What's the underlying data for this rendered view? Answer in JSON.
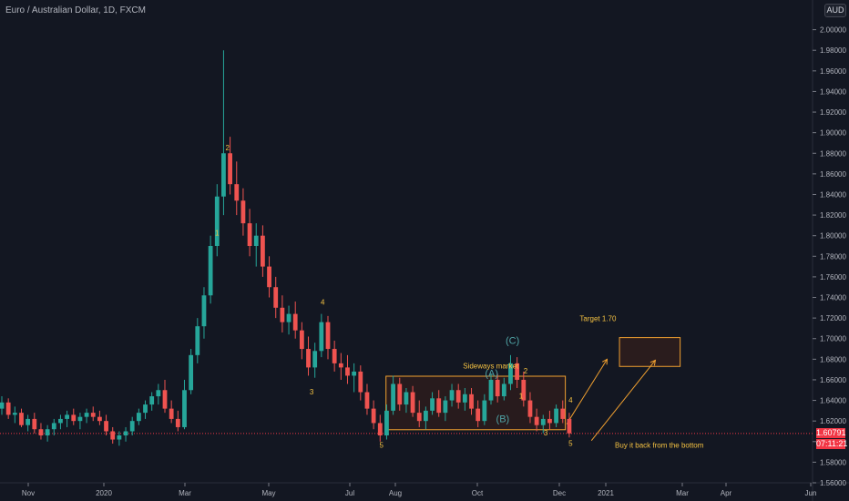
{
  "header": {
    "title": "Euro / Australian Dollar, 1D, FXCM",
    "currency_badge": "AUD"
  },
  "price_tags": {
    "last_price": "1.60791",
    "countdown": "07:11:21"
  },
  "colors": {
    "background": "#131722",
    "up": "#26a69a",
    "down": "#ef5350",
    "annotation": "#f5c242",
    "abc": "#4fa3a5",
    "box_stroke": "#f0a030",
    "box_fill": "#3a1f1a",
    "last_price_line": "#f23645"
  },
  "chart_data": {
    "type": "candlestick",
    "title": "Euro / Australian Dollar, 1D, FXCM",
    "ylim": [
      1.56,
      2.02
    ],
    "yticks": [
      "2.00000",
      "1.98000",
      "1.96000",
      "1.94000",
      "1.92000",
      "1.90000",
      "1.88000",
      "1.86000",
      "1.84000",
      "1.82000",
      "1.80000",
      "1.78000",
      "1.76000",
      "1.74000",
      "1.72000",
      "1.70000",
      "1.68000",
      "1.66000",
      "1.64000",
      "1.62000",
      "1.60000",
      "1.58000",
      "1.56000"
    ],
    "xticks": [
      "Nov",
      "2020",
      "Mar",
      "May",
      "Jul",
      "Aug",
      "Oct",
      "Dec",
      "2021",
      "Mar",
      "Apr",
      "Jun"
    ],
    "series": [
      {
        "values": [
          [
            0,
            1.632,
            1.644,
            1.626,
            1.638
          ],
          [
            1,
            1.638,
            1.642,
            1.622,
            1.626
          ],
          [
            2,
            1.626,
            1.634,
            1.618,
            1.628
          ],
          [
            3,
            1.628,
            1.632,
            1.614,
            1.616
          ],
          [
            4,
            1.616,
            1.626,
            1.61,
            1.622
          ],
          [
            5,
            1.622,
            1.628,
            1.608,
            1.612
          ],
          [
            6,
            1.612,
            1.618,
            1.602,
            1.606
          ],
          [
            7,
            1.606,
            1.616,
            1.6,
            1.612
          ],
          [
            8,
            1.612,
            1.622,
            1.606,
            1.618
          ],
          [
            9,
            1.618,
            1.626,
            1.612,
            1.622
          ],
          [
            10,
            1.622,
            1.63,
            1.614,
            1.626
          ],
          [
            11,
            1.626,
            1.632,
            1.616,
            1.62
          ],
          [
            12,
            1.62,
            1.628,
            1.612,
            1.624
          ],
          [
            13,
            1.624,
            1.632,
            1.618,
            1.628
          ],
          [
            14,
            1.628,
            1.634,
            1.62,
            1.624
          ],
          [
            15,
            1.624,
            1.63,
            1.616,
            1.62
          ],
          [
            16,
            1.62,
            1.626,
            1.606,
            1.61
          ],
          [
            17,
            1.61,
            1.614,
            1.598,
            1.602
          ],
          [
            18,
            1.602,
            1.61,
            1.596,
            1.606
          ],
          [
            19,
            1.606,
            1.614,
            1.6,
            1.61
          ],
          [
            20,
            1.61,
            1.624,
            1.606,
            1.62
          ],
          [
            21,
            1.62,
            1.632,
            1.616,
            1.628
          ],
          [
            22,
            1.628,
            1.64,
            1.622,
            1.636
          ],
          [
            23,
            1.636,
            1.648,
            1.63,
            1.644
          ],
          [
            24,
            1.644,
            1.656,
            1.636,
            1.65
          ],
          [
            25,
            1.65,
            1.66,
            1.628,
            1.632
          ],
          [
            26,
            1.632,
            1.64,
            1.618,
            1.622
          ],
          [
            27,
            1.622,
            1.63,
            1.61,
            1.614
          ],
          [
            28,
            1.614,
            1.66,
            1.612,
            1.65
          ],
          [
            29,
            1.65,
            1.69,
            1.646,
            1.684
          ],
          [
            30,
            1.684,
            1.72,
            1.676,
            1.712
          ],
          [
            31,
            1.712,
            1.75,
            1.7,
            1.742
          ],
          [
            32,
            1.742,
            1.8,
            1.734,
            1.79
          ],
          [
            33,
            1.79,
            1.85,
            1.78,
            1.838
          ],
          [
            34,
            1.838,
            1.98,
            1.82,
            1.88
          ],
          [
            35,
            1.88,
            1.896,
            1.84,
            1.85
          ],
          [
            36,
            1.85,
            1.872,
            1.82,
            1.834
          ],
          [
            37,
            1.834,
            1.846,
            1.8,
            1.812
          ],
          [
            38,
            1.812,
            1.826,
            1.78,
            1.79
          ],
          [
            39,
            1.79,
            1.812,
            1.77,
            1.8
          ],
          [
            40,
            1.8,
            1.81,
            1.76,
            1.77
          ],
          [
            41,
            1.77,
            1.78,
            1.74,
            1.75
          ],
          [
            42,
            1.75,
            1.76,
            1.72,
            1.73
          ],
          [
            43,
            1.73,
            1.742,
            1.706,
            1.716
          ],
          [
            44,
            1.716,
            1.732,
            1.704,
            1.724
          ],
          [
            45,
            1.724,
            1.736,
            1.7,
            1.708
          ],
          [
            46,
            1.708,
            1.716,
            1.68,
            1.69
          ],
          [
            47,
            1.69,
            1.702,
            1.664,
            1.672
          ],
          [
            48,
            1.672,
            1.696,
            1.662,
            1.688
          ],
          [
            49,
            1.688,
            1.724,
            1.682,
            1.716
          ],
          [
            50,
            1.716,
            1.722,
            1.68,
            1.69
          ],
          [
            51,
            1.69,
            1.698,
            1.668,
            1.676
          ],
          [
            52,
            1.676,
            1.686,
            1.66,
            1.672
          ],
          [
            53,
            1.672,
            1.684,
            1.656,
            1.664
          ],
          [
            54,
            1.664,
            1.676,
            1.648,
            1.668
          ],
          [
            55,
            1.668,
            1.674,
            1.64,
            1.648
          ],
          [
            56,
            1.648,
            1.656,
            1.626,
            1.632
          ],
          [
            57,
            1.632,
            1.64,
            1.612,
            1.618
          ],
          [
            58,
            1.618,
            1.626,
            1.6,
            1.606
          ],
          [
            59,
            1.606,
            1.636,
            1.602,
            1.63
          ],
          [
            60,
            1.63,
            1.664,
            1.626,
            1.656
          ],
          [
            61,
            1.656,
            1.662,
            1.63,
            1.636
          ],
          [
            62,
            1.636,
            1.652,
            1.628,
            1.648
          ],
          [
            63,
            1.648,
            1.654,
            1.624,
            1.628
          ],
          [
            64,
            1.628,
            1.64,
            1.614,
            1.62
          ],
          [
            65,
            1.62,
            1.634,
            1.612,
            1.63
          ],
          [
            66,
            1.63,
            1.648,
            1.626,
            1.642
          ],
          [
            67,
            1.642,
            1.65,
            1.624,
            1.628
          ],
          [
            68,
            1.628,
            1.644,
            1.62,
            1.64
          ],
          [
            69,
            1.64,
            1.656,
            1.634,
            1.65
          ],
          [
            70,
            1.65,
            1.656,
            1.632,
            1.638
          ],
          [
            71,
            1.638,
            1.652,
            1.63,
            1.646
          ],
          [
            72,
            1.646,
            1.652,
            1.626,
            1.632
          ],
          [
            73,
            1.632,
            1.64,
            1.614,
            1.62
          ],
          [
            74,
            1.62,
            1.646,
            1.616,
            1.64
          ],
          [
            75,
            1.64,
            1.666,
            1.636,
            1.66
          ],
          [
            76,
            1.66,
            1.666,
            1.638,
            1.644
          ],
          [
            77,
            1.644,
            1.662,
            1.64,
            1.656
          ],
          [
            78,
            1.656,
            1.684,
            1.65,
            1.676
          ],
          [
            79,
            1.676,
            1.682,
            1.652,
            1.66
          ],
          [
            80,
            1.66,
            1.668,
            1.634,
            1.64
          ],
          [
            81,
            1.64,
            1.648,
            1.618,
            1.624
          ],
          [
            82,
            1.624,
            1.632,
            1.61,
            1.616
          ],
          [
            83,
            1.616,
            1.626,
            1.608,
            1.622
          ],
          [
            84,
            1.622,
            1.63,
            1.612,
            1.618
          ],
          [
            85,
            1.618,
            1.636,
            1.614,
            1.632
          ],
          [
            86,
            1.632,
            1.64,
            1.618,
            1.622
          ],
          [
            87,
            1.622,
            1.628,
            1.604,
            1.608
          ]
        ]
      }
    ],
    "annotations": [
      {
        "text": "1",
        "x": 33,
        "y": 1.8,
        "color": "annotation"
      },
      {
        "text": "2",
        "x": 34.6,
        "y": 1.883,
        "color": "annotation"
      },
      {
        "text": "3",
        "x": 47.5,
        "y": 1.646,
        "color": "annotation"
      },
      {
        "text": "4",
        "x": 49.2,
        "y": 1.733,
        "color": "annotation"
      },
      {
        "text": "5",
        "x": 58.2,
        "y": 1.594,
        "color": "annotation"
      },
      {
        "text": "1",
        "x": 79.6,
        "y": 1.642,
        "color": "annotation"
      },
      {
        "text": "2",
        "x": 80.3,
        "y": 1.666,
        "color": "annotation"
      },
      {
        "text": "3",
        "x": 83.4,
        "y": 1.606,
        "color": "annotation"
      },
      {
        "text": "4",
        "x": 87.2,
        "y": 1.638,
        "color": "annotation"
      },
      {
        "text": "5",
        "x": 87.2,
        "y": 1.596,
        "color": "annotation"
      },
      {
        "text": "(A)",
        "x": 75.1,
        "y": 1.663,
        "color": "abc"
      },
      {
        "text": "(B)",
        "x": 76.8,
        "y": 1.619,
        "color": "abc"
      },
      {
        "text": "(C)",
        "x": 78.3,
        "y": 1.695,
        "color": "abc"
      },
      {
        "text": "Sideways market",
        "x": 70.7,
        "y": 1.671,
        "color": "annotation"
      },
      {
        "text": "Target 1.70",
        "x": 88.6,
        "y": 1.717,
        "color": "annotation"
      },
      {
        "text": "Buy it back from the bottom",
        "x": 94,
        "y": 1.594,
        "color": "annotation"
      }
    ],
    "range_box": {
      "x0": 58.9,
      "x1": 86.4,
      "y0": 1.6115,
      "y1": 1.6635
    },
    "target_box": {
      "x0": 94.7,
      "x1": 104.0,
      "y0": 1.673,
      "y1": 1.701
    },
    "arrows": [
      {
        "from": [
          86.6,
          1.617
        ],
        "to": [
          92.8,
          1.68
        ]
      },
      {
        "from": [
          90.4,
          1.601
        ],
        "to": [
          100.2,
          1.679
        ]
      }
    ],
    "last_price": 1.60791
  }
}
